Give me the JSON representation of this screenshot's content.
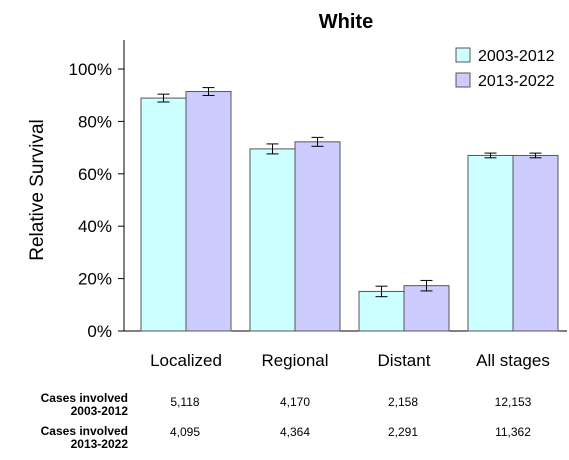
{
  "chart_data": {
    "type": "bar",
    "title": "White",
    "xlabel": "",
    "ylabel": "Relative Survival",
    "categories": [
      "Localized",
      "Regional",
      "Distant",
      "All stages"
    ],
    "yticks": [
      "0%",
      "20%",
      "40%",
      "60%",
      "80%",
      "100%"
    ],
    "ylim": [
      0,
      110
    ],
    "series": [
      {
        "name": "2003-2012",
        "color": "#ccffff",
        "values": [
          88.9,
          69.5,
          15.1,
          67.0
        ],
        "error_low": [
          87.4,
          67.6,
          13.1,
          66.1
        ],
        "error_high": [
          90.4,
          71.4,
          17.1,
          67.9
        ]
      },
      {
        "name": "2013-2022",
        "color": "#ccccff",
        "values": [
          91.4,
          72.2,
          17.3,
          67.0
        ],
        "error_low": [
          89.9,
          70.5,
          15.3,
          66.1
        ],
        "error_high": [
          92.9,
          73.9,
          19.3,
          67.9
        ]
      }
    ],
    "legend_position": "top-right",
    "grid": false
  },
  "cases": {
    "row1": {
      "label_line1": "Cases involved",
      "label_line2": "2003-2012",
      "values": [
        "5,118",
        "4,170",
        "2,158",
        "12,153"
      ]
    },
    "row2": {
      "label_line1": "Cases involved",
      "label_line2": "2013-2022",
      "values": [
        "4,095",
        "4,364",
        "2,291",
        "11,362"
      ]
    }
  }
}
